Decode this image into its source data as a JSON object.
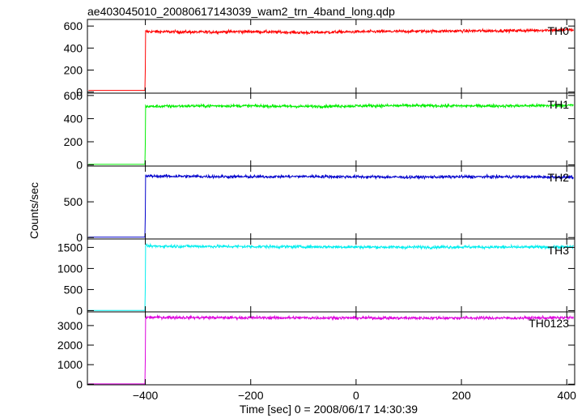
{
  "chart_data": {
    "type": "line",
    "title": "ae403045010_20080617143039_wam2_trn_4band_long.qdp",
    "xlabel": "Time [sec] 0 = 2008/06/17 14:30:39",
    "ylabel": "Counts/sec",
    "xlim": [
      -510,
      415
    ],
    "x_ticks": [
      "−400",
      "−200",
      "0",
      "200",
      "400"
    ],
    "x_tick_values": [
      -400,
      -200,
      0,
      200,
      400
    ],
    "onset_time": -400,
    "grid": false,
    "series": [
      {
        "name": "TH0",
        "color": "#ff0000",
        "ylim": [
          -10,
          660
        ],
        "y_ticks": [
          "0",
          "200",
          "400",
          "600"
        ],
        "y_tick_values": [
          0,
          200,
          400,
          600
        ],
        "pre_level": 15,
        "x": [
          -400,
          -300,
          -200,
          -100,
          0,
          100,
          200,
          300,
          400
        ],
        "values": [
          550,
          545,
          550,
          540,
          548,
          552,
          555,
          558,
          565
        ]
      },
      {
        "name": "TH1",
        "color": "#00ee00",
        "ylim": [
          -10,
          620
        ],
        "y_ticks": [
          "0",
          "200",
          "400",
          "600"
        ],
        "y_tick_values": [
          0,
          200,
          400,
          600
        ],
        "pre_level": 5,
        "x": [
          -400,
          -300,
          -200,
          -100,
          0,
          100,
          200,
          300,
          400
        ],
        "values": [
          505,
          510,
          510,
          505,
          510,
          512,
          510,
          510,
          515
        ]
      },
      {
        "name": "TH2",
        "color": "#0000cc",
        "ylim": [
          -20,
          1000
        ],
        "y_ticks": [
          "0",
          "500"
        ],
        "y_tick_values": [
          0,
          500
        ],
        "pre_level": 5,
        "x": [
          -400,
          -300,
          -200,
          -100,
          0,
          100,
          200,
          300,
          400
        ],
        "values": [
          860,
          855,
          850,
          855,
          850,
          845,
          850,
          850,
          845
        ]
      },
      {
        "name": "TH3",
        "color": "#00eeee",
        "ylim": [
          -30,
          1700
        ],
        "y_ticks": [
          "0",
          "500",
          "1000",
          "1500"
        ],
        "y_tick_values": [
          0,
          500,
          1000,
          1500
        ],
        "pre_level": 5,
        "x": [
          -400,
          -300,
          -200,
          -100,
          0,
          100,
          200,
          300,
          400
        ],
        "values": [
          1530,
          1525,
          1520,
          1515,
          1510,
          1505,
          1510,
          1505,
          1510
        ]
      },
      {
        "name": "TH0123",
        "color": "#dd00dd",
        "ylim": [
          -30,
          3700
        ],
        "y_ticks": [
          "0",
          "1000",
          "2000",
          "3000"
        ],
        "y_tick_values": [
          0,
          1000,
          2000,
          3000
        ],
        "pre_level": 15,
        "x": [
          -400,
          -300,
          -200,
          -100,
          0,
          100,
          200,
          300,
          400
        ],
        "values": [
          3420,
          3410,
          3400,
          3395,
          3390,
          3385,
          3390,
          3385,
          3400
        ]
      }
    ]
  }
}
